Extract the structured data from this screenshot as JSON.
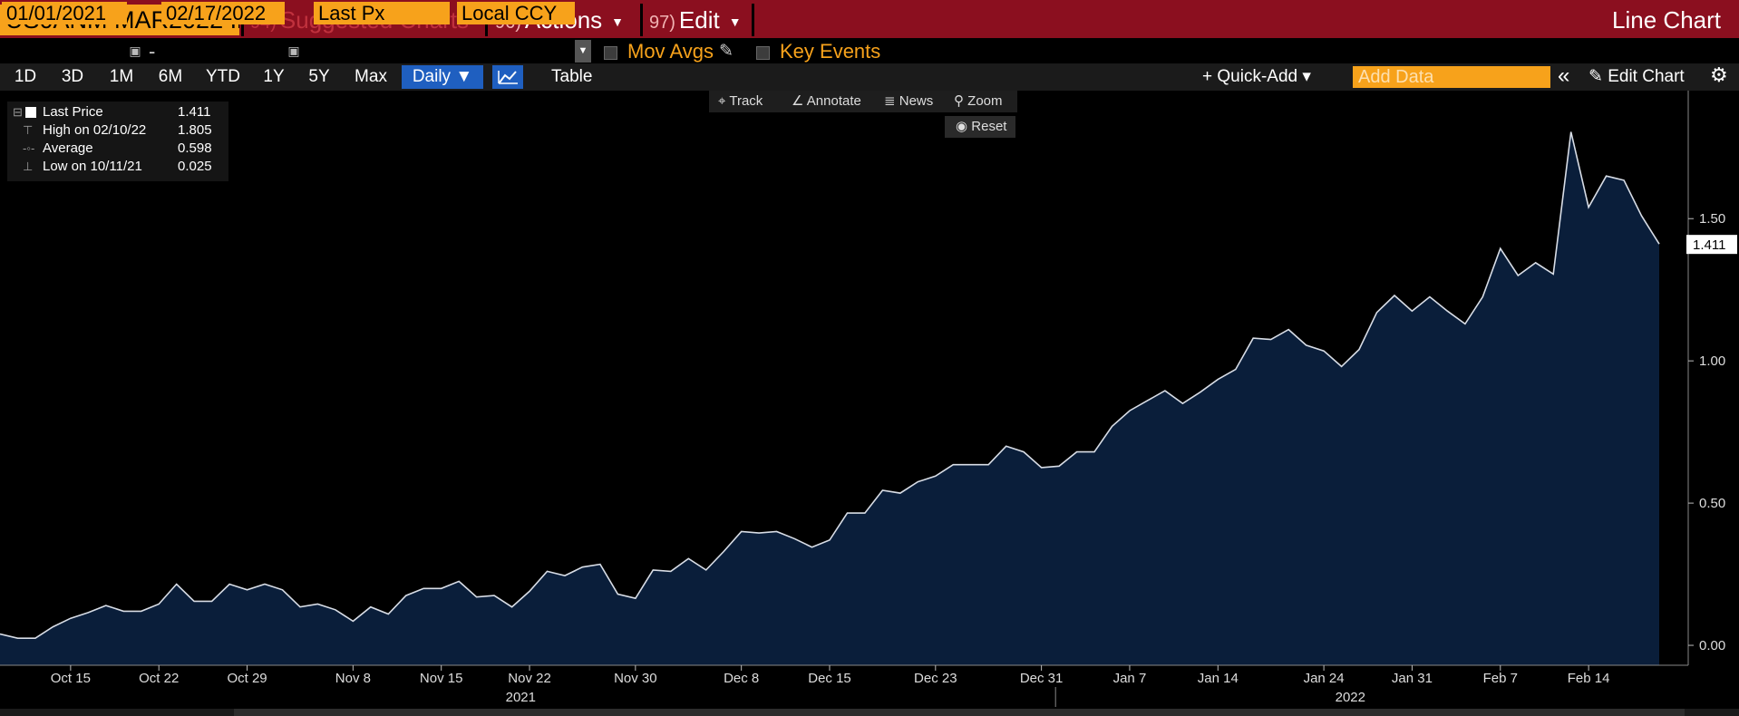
{
  "toolbar": {
    "ticker": "US0ANM MAR2022 Ir",
    "menus": [
      {
        "num": "94)",
        "label": "Suggested Charts",
        "caret": ""
      },
      {
        "num": "96)",
        "label": "Actions",
        "caret": "▼"
      },
      {
        "num": "97)",
        "label": "Edit",
        "caret": "▼"
      }
    ],
    "chart_title": "Line Chart"
  },
  "params": {
    "start_date": "01/01/2021",
    "dash": "-",
    "end_date": "02/17/2022",
    "field": "Last Px",
    "currency": "Local CCY",
    "mov_avgs": "Mov Avgs",
    "key_events": "Key Events"
  },
  "ranges": [
    "1D",
    "3D",
    "1M",
    "6M",
    "YTD",
    "1Y",
    "5Y",
    "Max"
  ],
  "view": {
    "periodicity": "Daily ▼",
    "table": "Table",
    "quick_add": "+ Quick-Add ▾",
    "add_data_placeholder": "Add Data",
    "collapse": "«",
    "edit_chart": "✎ Edit Chart",
    "settings_icon": "gear-icon"
  },
  "tools": {
    "track": "Track",
    "annotate": "Annotate",
    "news": "News",
    "zoom": "Zoom",
    "reset": "Reset"
  },
  "legend": {
    "rows": [
      {
        "name": "Last Price",
        "value": "1.411"
      },
      {
        "name": "High on 02/10/22",
        "value": "1.805"
      },
      {
        "name": "Average",
        "value": "0.598"
      },
      {
        "name": "Low on 10/11/21",
        "value": "0.025"
      }
    ]
  },
  "colors": {
    "area_fill": "#0a1e3a",
    "line": "#d8dde6",
    "accent": "#f7a21b",
    "brand_red": "#8b0f1f"
  },
  "chart_data": {
    "type": "area",
    "title": "",
    "xlabel": "",
    "ylabel": "",
    "ylim": [
      -0.07,
      1.95
    ],
    "yticks": [
      0.0,
      0.5,
      1.0,
      1.5
    ],
    "ytick_labels": [
      "0.00",
      "0.50",
      "1.00",
      "1.50"
    ],
    "last_value_label": "1.411",
    "xticks": [
      {
        "i": 4,
        "label": "Oct 15"
      },
      {
        "i": 9,
        "label": "Oct 22"
      },
      {
        "i": 14,
        "label": "Oct 29"
      },
      {
        "i": 20,
        "label": "Nov 8"
      },
      {
        "i": 25,
        "label": "Nov 15"
      },
      {
        "i": 30,
        "label": "Nov 22"
      },
      {
        "i": 36,
        "label": "Nov 30"
      },
      {
        "i": 42,
        "label": "Dec 8"
      },
      {
        "i": 47,
        "label": "Dec 15"
      },
      {
        "i": 53,
        "label": "Dec 23"
      },
      {
        "i": 59,
        "label": "Dec 31"
      },
      {
        "i": 64,
        "label": "Jan 7"
      },
      {
        "i": 69,
        "label": "Jan 14"
      },
      {
        "i": 75,
        "label": "Jan 24"
      },
      {
        "i": 80,
        "label": "Jan 31"
      },
      {
        "i": 85,
        "label": "Feb 7"
      },
      {
        "i": 90,
        "label": "Feb 14"
      }
    ],
    "year_labels": [
      {
        "i": 29.5,
        "label": "2021"
      },
      {
        "i": 76.5,
        "label": "2022"
      }
    ],
    "year_divider_i": 59.8,
    "series": [
      {
        "values": [
          0.04,
          0.025,
          0.025,
          0.065,
          0.095,
          0.115,
          0.14,
          0.12,
          0.12,
          0.145,
          0.215,
          0.155,
          0.155,
          0.215,
          0.195,
          0.215,
          0.195,
          0.135,
          0.145,
          0.125,
          0.085,
          0.135,
          0.11,
          0.175,
          0.2,
          0.2,
          0.225,
          0.17,
          0.175,
          0.135,
          0.19,
          0.26,
          0.245,
          0.275,
          0.285,
          0.18,
          0.165,
          0.265,
          0.26,
          0.305,
          0.265,
          0.33,
          0.4,
          0.395,
          0.4,
          0.375,
          0.345,
          0.37,
          0.465,
          0.465,
          0.545,
          0.535,
          0.575,
          0.595,
          0.635,
          0.635,
          0.635,
          0.7,
          0.68,
          0.625,
          0.63,
          0.68,
          0.68,
          0.77,
          0.825,
          0.86,
          0.895,
          0.85,
          0.89,
          0.935,
          0.97,
          1.08,
          1.075,
          1.11,
          1.055,
          1.035,
          0.98,
          1.04,
          1.17,
          1.23,
          1.175,
          1.225,
          1.175,
          1.13,
          1.225,
          1.395,
          1.3,
          1.345,
          1.305,
          1.805,
          1.54,
          1.65,
          1.635,
          1.51,
          1.411
        ]
      }
    ]
  }
}
